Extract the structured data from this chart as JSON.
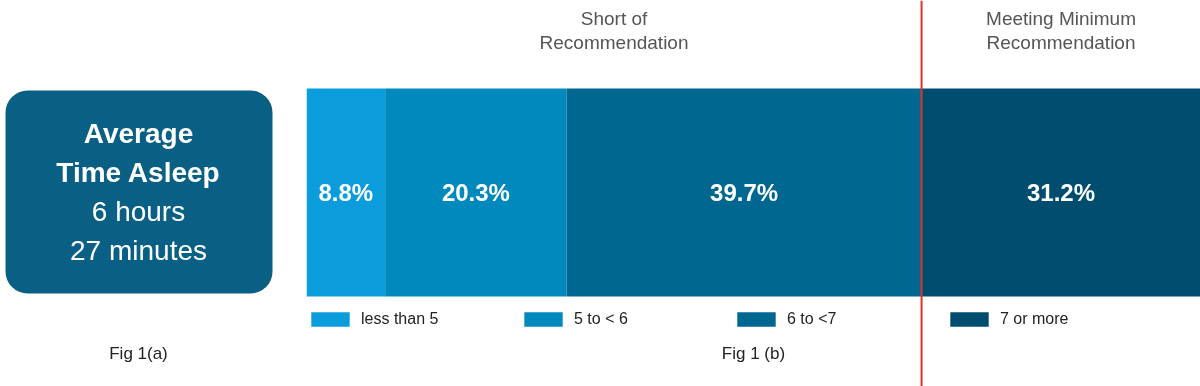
{
  "chart_data": [
    {
      "type": "other",
      "title": "Average Time Asleep",
      "annotations": [
        "6 hours",
        "27 minutes",
        "Fig 1(a)"
      ],
      "color": "#0a5f85"
    },
    {
      "type": "bar",
      "orientation": "horizontal",
      "stacked": true,
      "categories": [
        null
      ],
      "tick_labels": false,
      "legend": "bottom",
      "series": [
        {
          "name": "less than 5",
          "color": "#0b9ddb",
          "values": [
            8.8
          ],
          "value_labels": [
            "8.8%"
          ]
        },
        {
          "name": "5 to < 6",
          "color": "#0089bc",
          "values": [
            20.3
          ],
          "value_labels": [
            "20.3%"
          ]
        },
        {
          "name": "6 to <7",
          "color": "#006791",
          "values": [
            39.7
          ],
          "value_labels": [
            "39.7%"
          ]
        },
        {
          "name": "7 or more",
          "color": "#004d70",
          "values": [
            31.2
          ],
          "value_labels": [
            "31.2%"
          ]
        }
      ],
      "ref_lines": [
        {
          "axis": "x",
          "value": 68.8,
          "color": "#e0312b"
        }
      ],
      "annotations": [
        "Short of Recommendation",
        "Meeting Minimum Recommendation",
        "Fig 1 (b)"
      ]
    }
  ]
}
